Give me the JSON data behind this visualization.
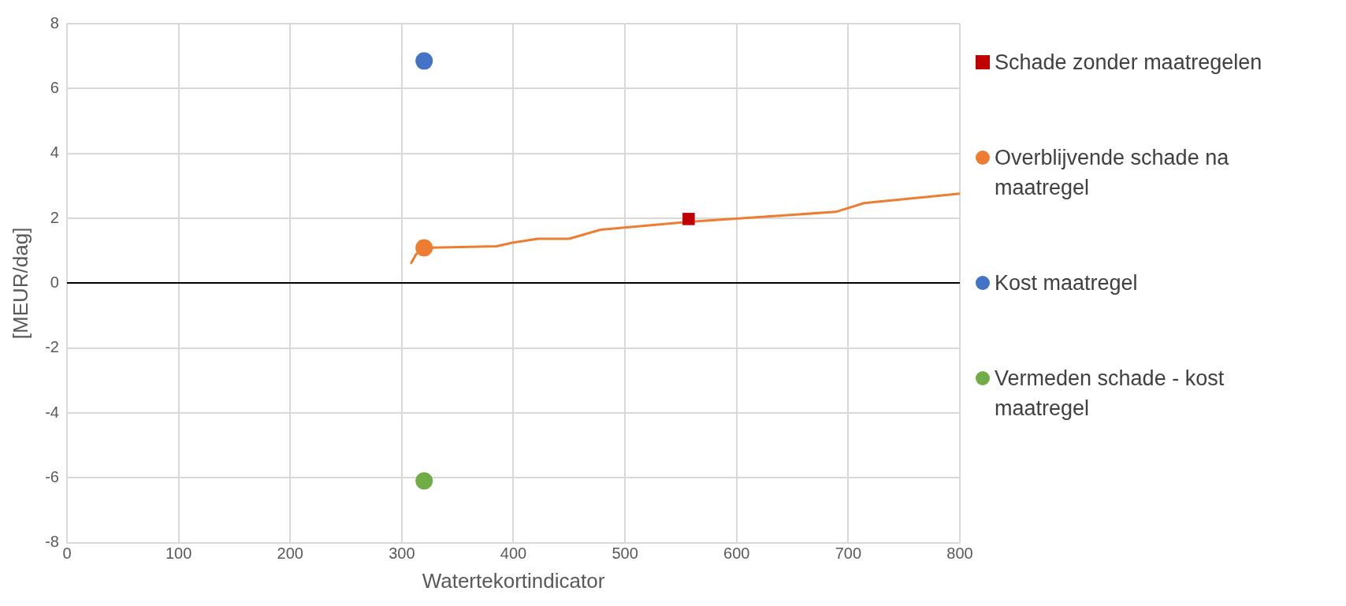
{
  "chart_data": {
    "type": "scatter",
    "xlabel": "Watertekortindicator",
    "ylabel": "[MEUR/dag]",
    "xlim": [
      0,
      800
    ],
    "xticks": [
      0,
      100,
      200,
      300,
      400,
      500,
      600,
      700,
      800
    ],
    "ylim": [
      -8,
      8
    ],
    "yticks": [
      -8,
      -6,
      -4,
      -2,
      0,
      2,
      4,
      6,
      8
    ],
    "grid": true,
    "legend": "right",
    "series": [
      {
        "type": "line",
        "color": "#ed7d31",
        "marker": "none",
        "x": [
          308,
          313,
          320,
          385,
          399,
          422,
          450,
          478,
          557,
          689,
          714,
          800
        ],
        "values": [
          0.6,
          0.9,
          1.09,
          1.14,
          1.25,
          1.37,
          1.37,
          1.65,
          1.89,
          2.2,
          2.47,
          2.76
        ]
      },
      {
        "name": "Schade zonder maatregelen",
        "color": "#c00000",
        "marker": "square",
        "x": [
          557
        ],
        "values": [
          1.98
        ]
      },
      {
        "name": "Overblijvende schade na maatregel",
        "color": "#ed7d31",
        "marker": "circle",
        "x": [
          320
        ],
        "values": [
          1.09
        ]
      },
      {
        "name": "Kost maatregel",
        "color": "#4472c4",
        "marker": "circle",
        "x": [
          320
        ],
        "values": [
          6.85
        ]
      },
      {
        "name": "Vermeden schade - kost maatregel",
        "color": "#70ad47",
        "marker": "circle",
        "x": [
          320
        ],
        "values": [
          -6.09
        ]
      }
    ]
  }
}
